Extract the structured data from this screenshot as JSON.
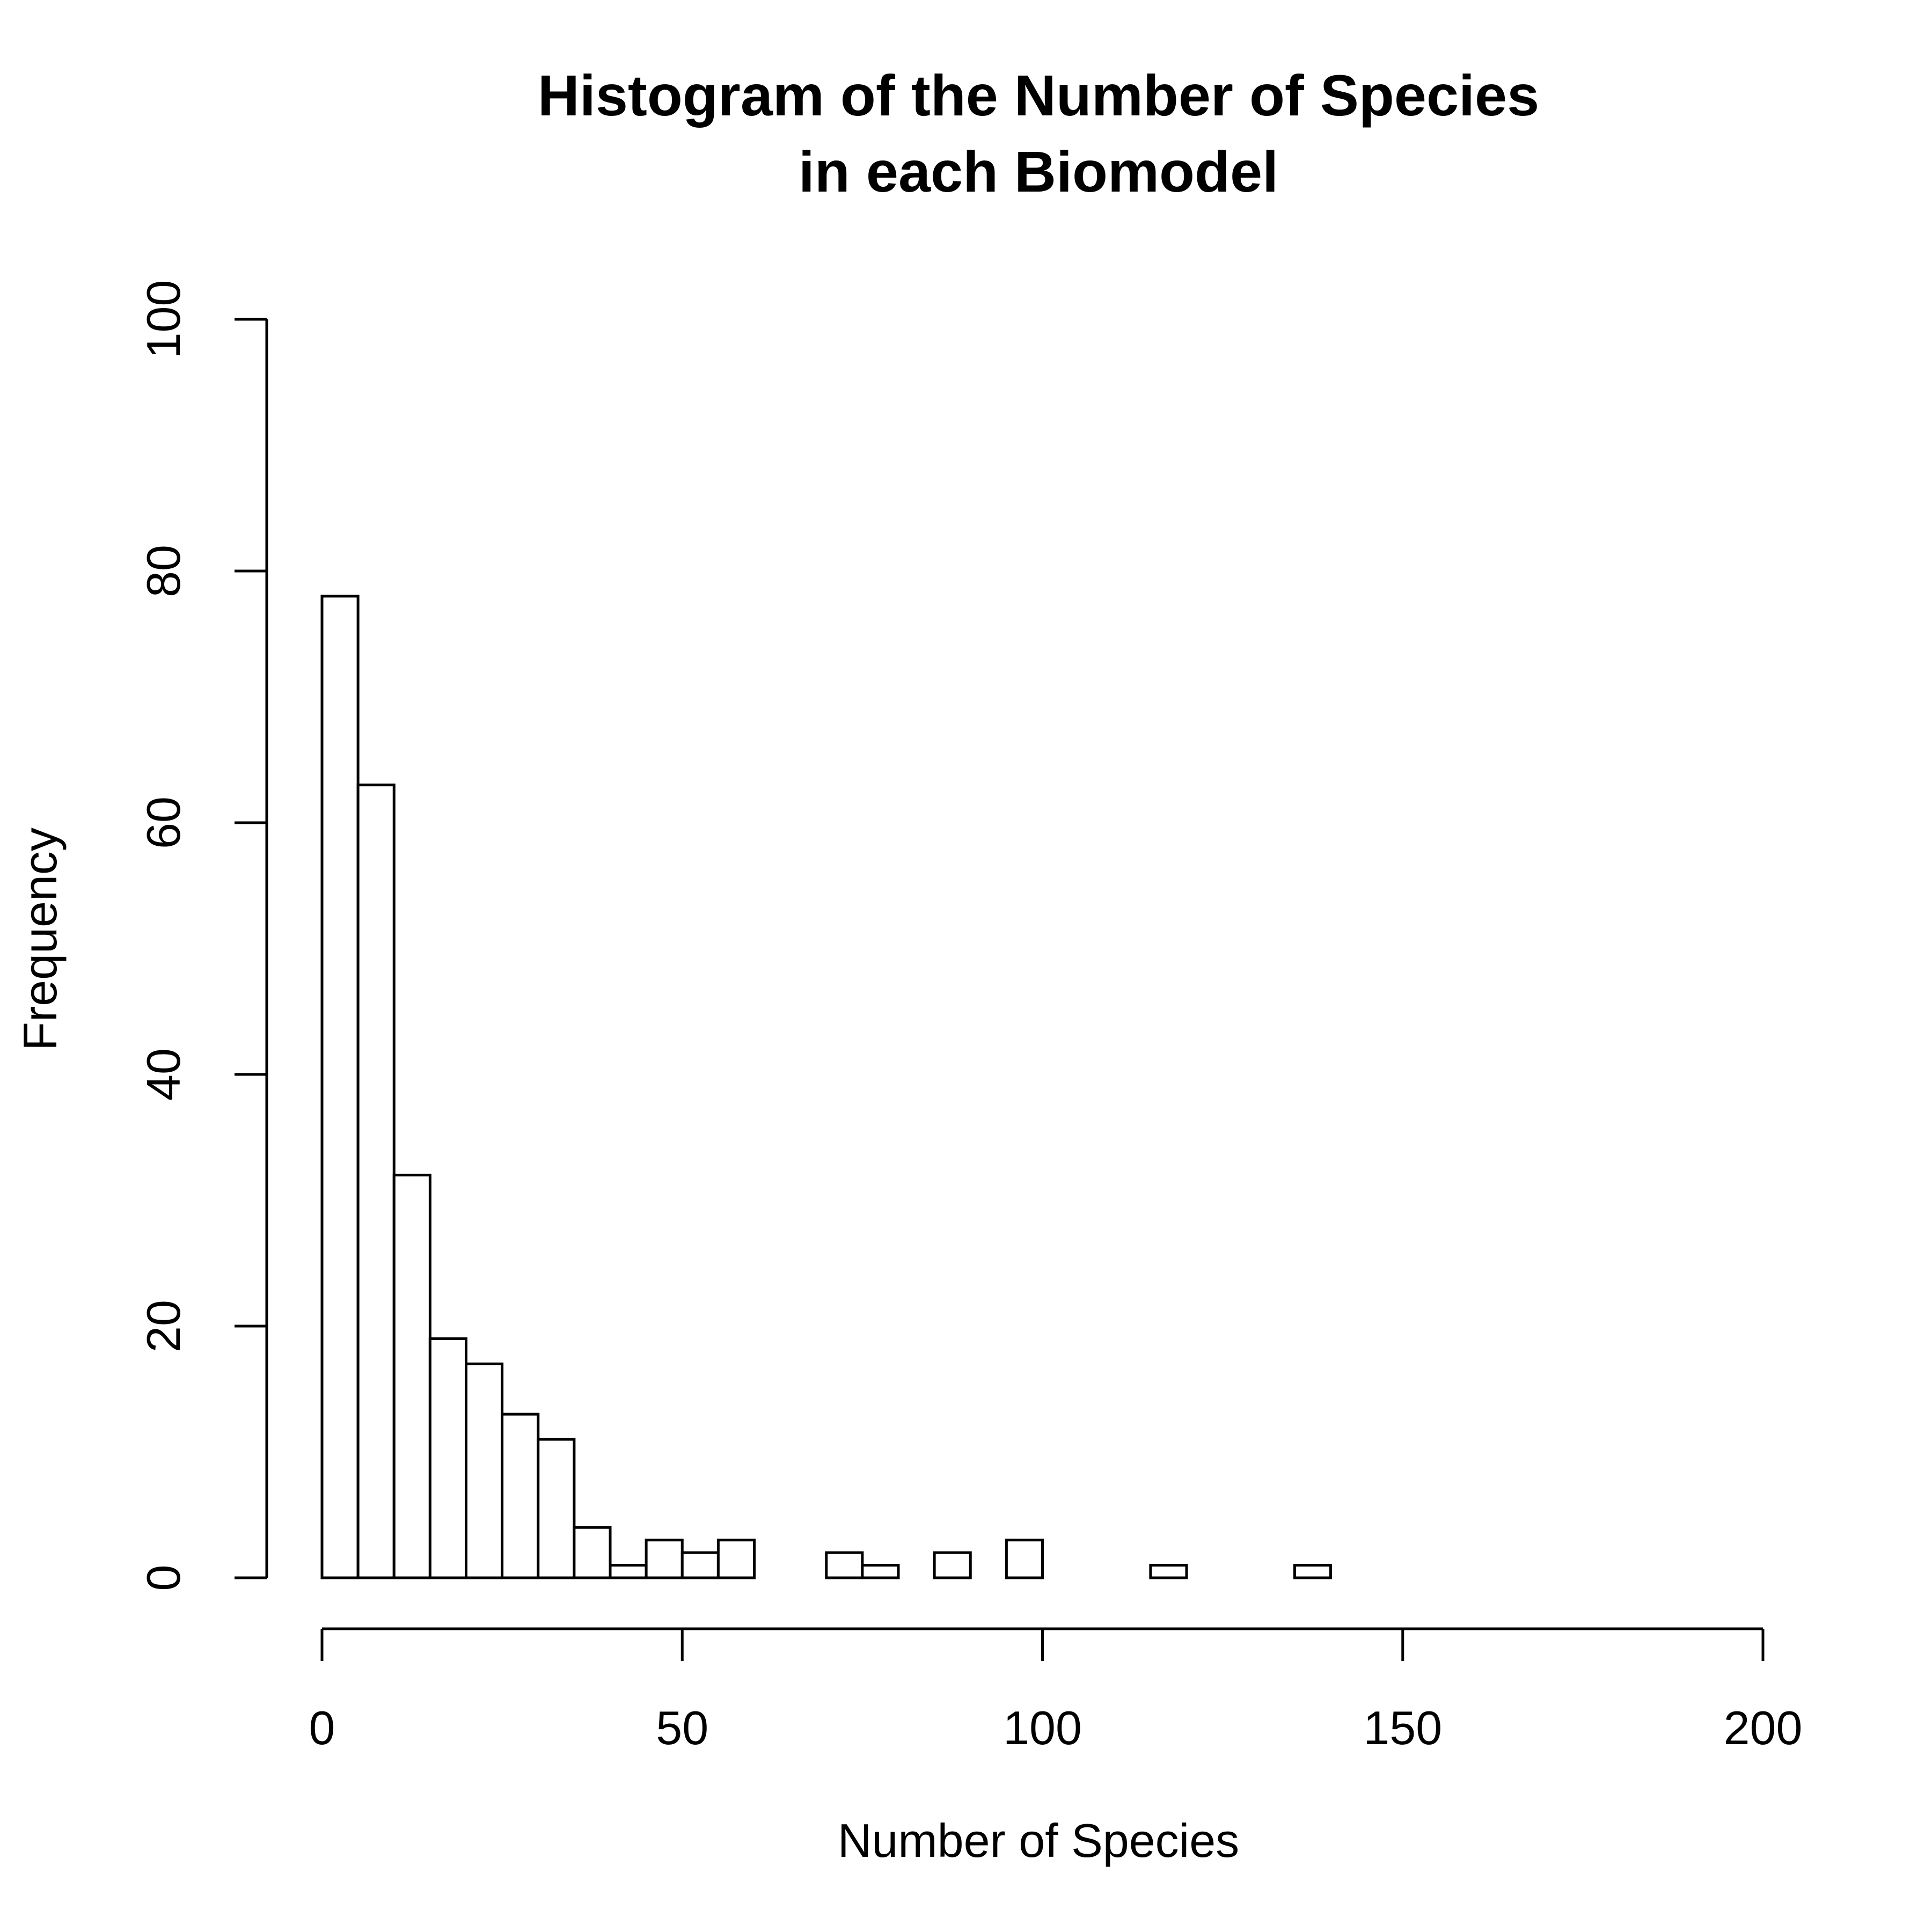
{
  "chart_data": {
    "type": "bar",
    "subtype": "histogram",
    "title": [
      "Histogram of the Number of Species",
      "in each Biomodel"
    ],
    "xlabel": "Number of Species",
    "ylabel": "Frequency",
    "bin_width": 5,
    "bins": [
      {
        "start": 0,
        "end": 5,
        "count": 78
      },
      {
        "start": 5,
        "end": 10,
        "count": 63
      },
      {
        "start": 10,
        "end": 15,
        "count": 32
      },
      {
        "start": 15,
        "end": 20,
        "count": 19
      },
      {
        "start": 20,
        "end": 25,
        "count": 17
      },
      {
        "start": 25,
        "end": 30,
        "count": 13
      },
      {
        "start": 30,
        "end": 35,
        "count": 11
      },
      {
        "start": 35,
        "end": 40,
        "count": 4
      },
      {
        "start": 40,
        "end": 45,
        "count": 1
      },
      {
        "start": 45,
        "end": 50,
        "count": 3
      },
      {
        "start": 50,
        "end": 55,
        "count": 2
      },
      {
        "start": 55,
        "end": 60,
        "count": 3
      },
      {
        "start": 60,
        "end": 65,
        "count": 0
      },
      {
        "start": 65,
        "end": 70,
        "count": 0
      },
      {
        "start": 70,
        "end": 75,
        "count": 2
      },
      {
        "start": 75,
        "end": 80,
        "count": 1
      },
      {
        "start": 80,
        "end": 85,
        "count": 0
      },
      {
        "start": 85,
        "end": 90,
        "count": 2
      },
      {
        "start": 90,
        "end": 95,
        "count": 0
      },
      {
        "start": 95,
        "end": 100,
        "count": 3
      },
      {
        "start": 100,
        "end": 105,
        "count": 0
      },
      {
        "start": 105,
        "end": 110,
        "count": 0
      },
      {
        "start": 110,
        "end": 115,
        "count": 0
      },
      {
        "start": 115,
        "end": 120,
        "count": 1
      },
      {
        "start": 120,
        "end": 125,
        "count": 0
      },
      {
        "start": 125,
        "end": 130,
        "count": 0
      },
      {
        "start": 130,
        "end": 135,
        "count": 0
      },
      {
        "start": 135,
        "end": 140,
        "count": 1
      }
    ],
    "xlim": [
      0,
      200
    ],
    "ylim": [
      0,
      100
    ],
    "xticks": [
      0,
      50,
      100,
      150,
      200
    ],
    "yticks": [
      0,
      20,
      40,
      60,
      80,
      100
    ],
    "grid": false,
    "legend": "none",
    "bar_fill": "#ffffff",
    "bar_stroke": "#000000"
  }
}
